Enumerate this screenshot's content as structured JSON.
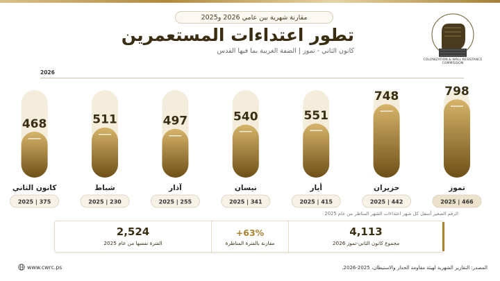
{
  "header": {
    "subtitle": "مقارنة شهرية بين عامي 2026 و2025",
    "title": "تطور اعتداءات المستعمرين",
    "caption": "كانون الثاني - تموز | الضفة الغربية بما فيها القدس"
  },
  "logo": {
    "caption": "COLONIZATION & WALL RESISTANCE COMMISSION"
  },
  "chart_data": {
    "type": "bar",
    "year_label": "2026",
    "categories": [
      "تموز",
      "حزيران",
      "أيار",
      "نيسان",
      "آذار",
      "شباط",
      "كانون الثاني"
    ],
    "series": [
      {
        "name": "2026",
        "values": [
          798,
          748,
          551,
          540,
          497,
          511,
          468
        ]
      }
    ],
    "comparison_labels": [
      "2025 | 466",
      "2025 | 442",
      "2025 | 415",
      "2025 | 341",
      "2025 | 255",
      "2025 | 230",
      "2025 | 375"
    ],
    "ylim": [
      0,
      820
    ]
  },
  "footnote": "الرقم الصغير أسفل كل شهر اعتداءات الشهر المناظر من عام 2025",
  "stats": {
    "total_value": "4,113",
    "total_label": "مجموع كانون الثاني-تموز 2026",
    "change_value": "+63%",
    "change_label": "مقارنة بالفترة المناظرة",
    "prev_value": "2,524",
    "prev_label": "الفترة نفسها من عام 2025"
  },
  "footer": {
    "source": "المصدر: التقارير الشهرية لهيئة مقاومة الجدار والاستيطان، 2025-2026.",
    "website": "www.cwrc.ps"
  },
  "colors": {
    "accent": "#a9812f",
    "bar_light": "#d6b46a",
    "bar_dark": "#6e5018",
    "track": "#f4eddc"
  }
}
